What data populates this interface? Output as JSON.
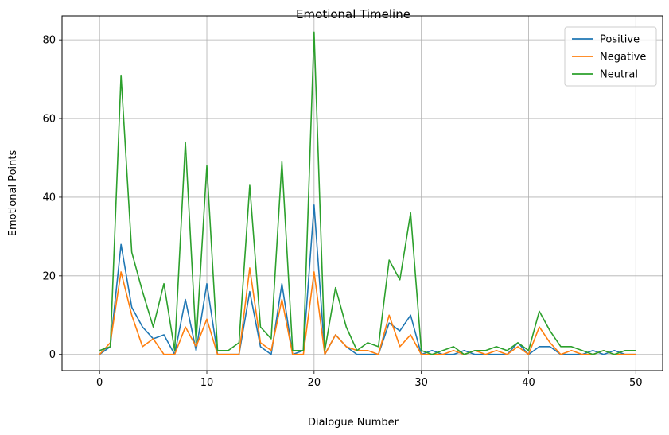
{
  "chart_data": {
    "type": "line",
    "title": "Emotional Timeline",
    "xlabel": "Dialogue Number",
    "ylabel": "Emotional Points",
    "xlim": [
      -3.5,
      52.5
    ],
    "ylim": [
      -4.1,
      86.1
    ],
    "xticks": [
      0,
      10,
      20,
      30,
      40,
      50
    ],
    "yticks": [
      0,
      20,
      40,
      60,
      80
    ],
    "grid": true,
    "legend_position": "top-right",
    "x": [
      0,
      1,
      2,
      3,
      4,
      5,
      6,
      7,
      8,
      9,
      10,
      11,
      12,
      13,
      14,
      15,
      16,
      17,
      18,
      19,
      20,
      21,
      22,
      23,
      24,
      25,
      26,
      27,
      28,
      29,
      30,
      31,
      32,
      33,
      34,
      35,
      36,
      37,
      38,
      39,
      40,
      41,
      42,
      43,
      44,
      45,
      46,
      47,
      48,
      49,
      50
    ],
    "series": [
      {
        "name": "Positive",
        "color": "#1f77b4",
        "values": [
          0,
          2,
          28,
          12,
          7,
          4,
          5,
          0,
          14,
          1,
          18,
          0,
          0,
          0,
          16,
          2,
          0,
          18,
          0,
          1,
          38,
          0,
          5,
          2,
          0,
          0,
          0,
          8,
          6,
          10,
          0,
          1,
          0,
          0,
          1,
          0,
          0,
          0,
          0,
          3,
          0,
          2,
          2,
          0,
          0,
          0,
          1,
          0,
          1,
          0,
          0
        ]
      },
      {
        "name": "Negative",
        "color": "#ff7f0e",
        "values": [
          0,
          3,
          21,
          10,
          2,
          4,
          0,
          0,
          7,
          2,
          9,
          0,
          0,
          0,
          22,
          3,
          1,
          14,
          0,
          0,
          21,
          0,
          5,
          2,
          1,
          1,
          0,
          10,
          2,
          5,
          0,
          0,
          0,
          1,
          0,
          1,
          0,
          1,
          0,
          2,
          0,
          7,
          3,
          0,
          1,
          0,
          0,
          1,
          0,
          0,
          0
        ]
      },
      {
        "name": "Neutral",
        "color": "#2ca02c",
        "values": [
          1,
          2,
          71,
          26,
          16,
          7,
          18,
          1,
          54,
          3,
          48,
          1,
          1,
          3,
          43,
          7,
          4,
          49,
          1,
          1,
          82,
          1,
          17,
          7,
          1,
          3,
          2,
          24,
          19,
          36,
          1,
          0,
          1,
          2,
          0,
          1,
          1,
          2,
          1,
          3,
          1,
          11,
          6,
          2,
          2,
          1,
          0,
          1,
          0,
          1,
          1
        ]
      }
    ]
  }
}
